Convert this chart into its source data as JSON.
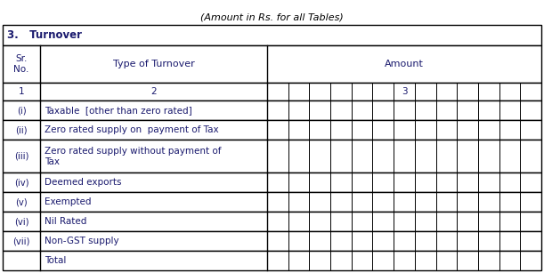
{
  "title": "(Amount in Rs. for all Tables)",
  "section_header": "3.   Turnover",
  "col1_header_line1": "Sr.",
  "col1_header_line2": "No.",
  "col2_header": "Type of Turnover",
  "col3_header": "Amount",
  "row_num_1": "1",
  "row_num_2": "2",
  "row_num_3": "3",
  "rows": [
    {
      "sr": "(i)",
      "desc": "Taxable  [other than zero rated]",
      "tall": false
    },
    {
      "sr": "(ii)",
      "desc": "Zero rated supply on  payment of Tax",
      "tall": false
    },
    {
      "sr": "(iii)",
      "desc": "Zero rated supply without payment of\nTax",
      "tall": true
    },
    {
      "sr": "(iv)",
      "desc": "Deemed exports",
      "tall": false
    },
    {
      "sr": "(v)",
      "desc": "Exempted",
      "tall": false
    },
    {
      "sr": "(vi)",
      "desc": "Nil Rated",
      "tall": false
    },
    {
      "sr": "(vii)",
      "desc": "Non-GST supply",
      "tall": false
    },
    {
      "sr": "",
      "desc": "Total",
      "tall": false
    }
  ],
  "bg_color": "#ffffff",
  "border_color": "#000000",
  "text_color": "#1a1a6e",
  "n_amt_cols": 13,
  "figw": 6.11,
  "figh": 3.07,
  "dpi": 100
}
